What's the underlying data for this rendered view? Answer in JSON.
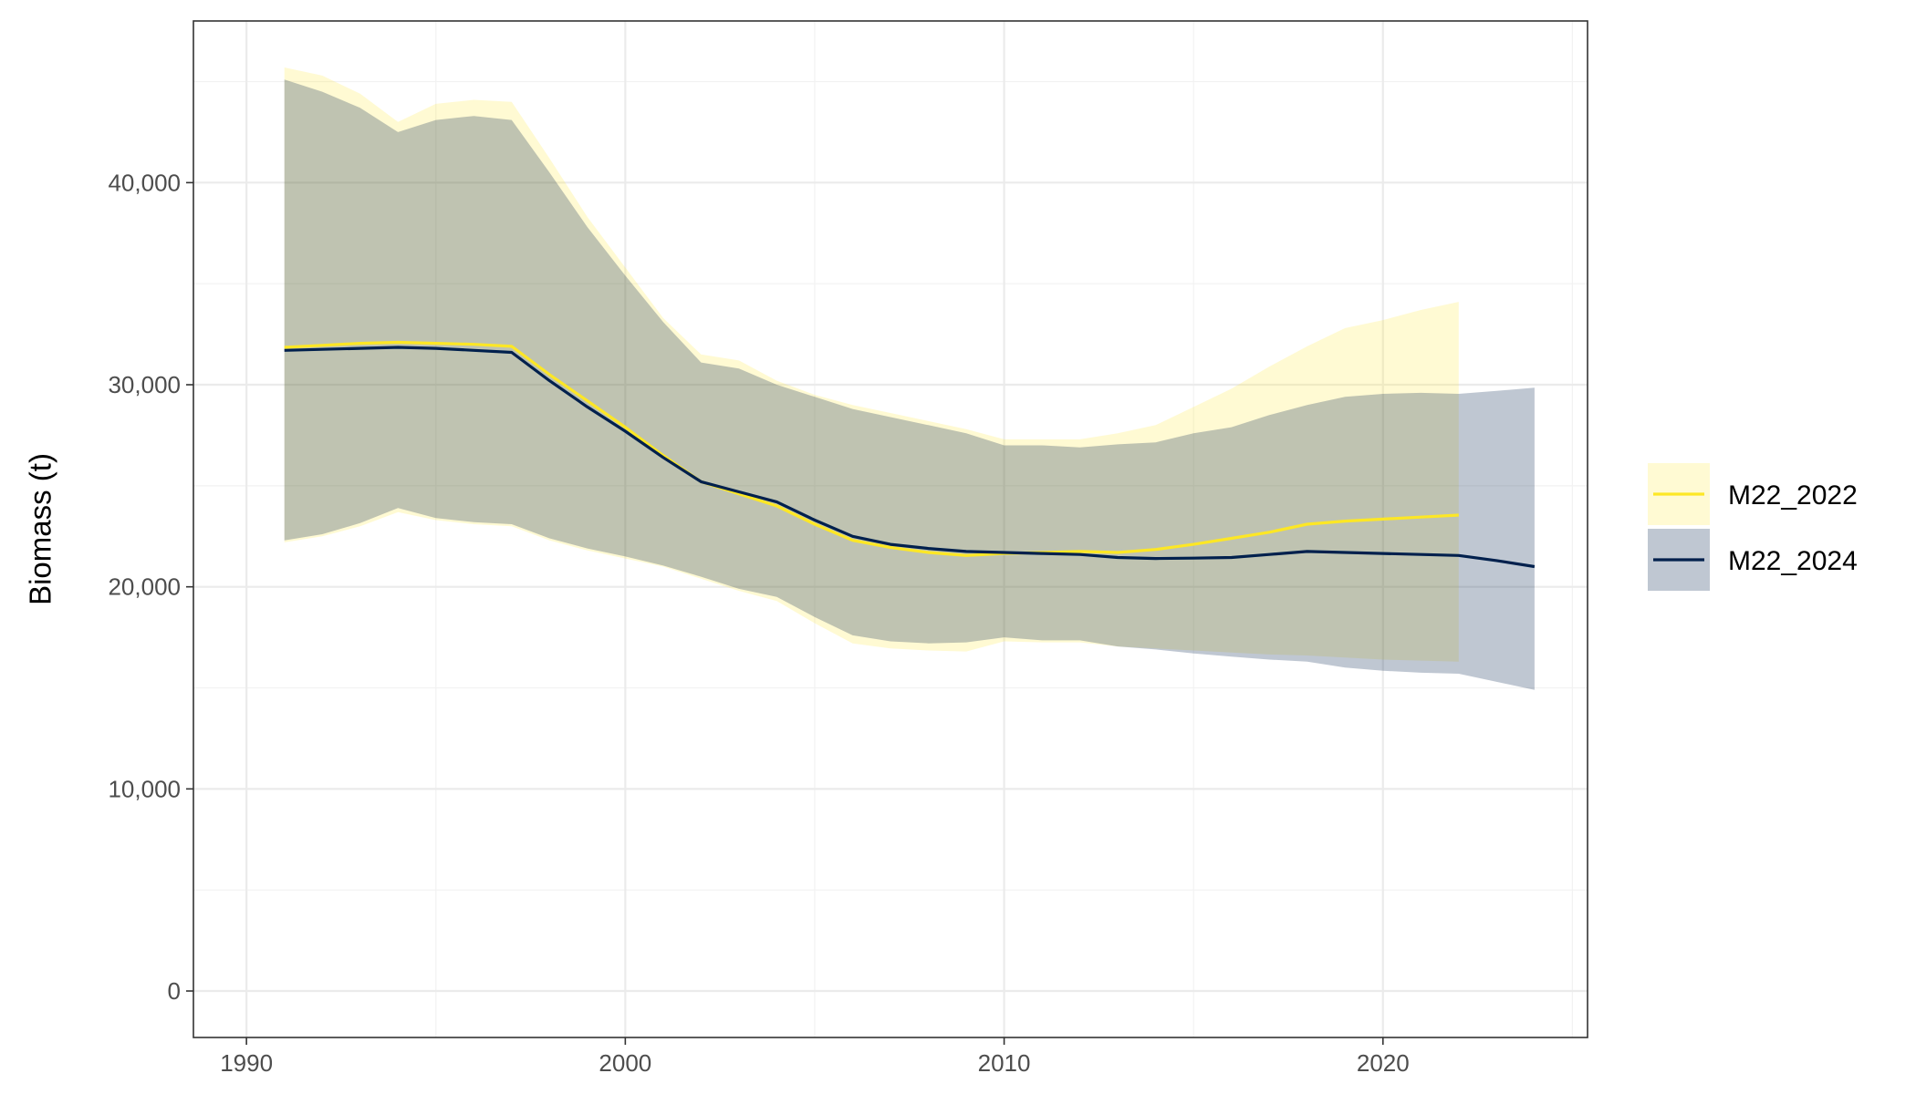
{
  "chart_data": {
    "type": "line",
    "title": "",
    "xlabel": "",
    "ylabel": "Biomass (t)",
    "xlim": [
      1990,
      2025
    ],
    "ylim": [
      0,
      46000
    ],
    "grid": true,
    "legend_position": "right",
    "x_ticks": [
      1990,
      2000,
      2010,
      2020
    ],
    "x_tick_labels": [
      "1990",
      "2000",
      "2010",
      "2020"
    ],
    "y_ticks": [
      0,
      10000,
      20000,
      30000,
      40000
    ],
    "y_tick_labels": [
      "0",
      "10,000",
      "20,000",
      "30,000",
      "40,000"
    ],
    "series": [
      {
        "name": "M22_2022",
        "line_color": "#fde725",
        "band_color": "#fde725",
        "band_opacity": 0.2,
        "x": [
          1991,
          1992,
          1993,
          1994,
          1995,
          1996,
          1997,
          1998,
          1999,
          2000,
          2001,
          2002,
          2003,
          2004,
          2005,
          2006,
          2007,
          2008,
          2009,
          2010,
          2011,
          2012,
          2013,
          2014,
          2015,
          2016,
          2017,
          2018,
          2019,
          2020,
          2021,
          2022
        ],
        "y": [
          31850,
          31950,
          32050,
          32100,
          32050,
          32000,
          31900,
          30500,
          29200,
          27900,
          26500,
          25200,
          24600,
          24000,
          23100,
          22300,
          21950,
          21700,
          21550,
          21650,
          21700,
          21750,
          21700,
          21850,
          22100,
          22400,
          22700,
          23100,
          23250,
          23350,
          23450,
          23550
        ],
        "lower": [
          22200,
          22500,
          23000,
          23700,
          23300,
          23100,
          23000,
          22300,
          21800,
          21400,
          21000,
          20400,
          19800,
          19300,
          18200,
          17200,
          16950,
          16850,
          16800,
          17300,
          17250,
          17250,
          17050,
          16950,
          16850,
          16750,
          16650,
          16600,
          16500,
          16400,
          16350,
          16300
        ],
        "upper": [
          45700,
          45300,
          44400,
          43000,
          43900,
          44100,
          44000,
          41200,
          38300,
          35800,
          33300,
          31500,
          31200,
          30200,
          29500,
          29000,
          28600,
          28200,
          27800,
          27300,
          27300,
          27300,
          27600,
          28000,
          28900,
          29800,
          30900,
          31900,
          32800,
          33200,
          33700,
          34100
        ]
      },
      {
        "name": "M22_2024",
        "line_color": "#00204d",
        "band_color": "#00204d",
        "band_opacity": 0.25,
        "x": [
          1991,
          1992,
          1993,
          1994,
          1995,
          1996,
          1997,
          1998,
          1999,
          2000,
          2001,
          2002,
          2003,
          2004,
          2005,
          2006,
          2007,
          2008,
          2009,
          2010,
          2011,
          2012,
          2013,
          2014,
          2015,
          2016,
          2017,
          2018,
          2019,
          2020,
          2021,
          2022,
          2023,
          2024
        ],
        "y": [
          31700,
          31750,
          31800,
          31850,
          31800,
          31700,
          31600,
          30200,
          28900,
          27700,
          26400,
          25200,
          24700,
          24200,
          23300,
          22500,
          22100,
          21900,
          21750,
          21700,
          21650,
          21600,
          21450,
          21400,
          21420,
          21450,
          21600,
          21750,
          21700,
          21650,
          21600,
          21550,
          21300,
          21000
        ],
        "lower": [
          22300,
          22600,
          23150,
          23900,
          23400,
          23200,
          23100,
          22400,
          21900,
          21500,
          21050,
          20500,
          19900,
          19500,
          18500,
          17600,
          17300,
          17200,
          17250,
          17500,
          17350,
          17350,
          17050,
          16900,
          16700,
          16550,
          16400,
          16300,
          16000,
          15850,
          15750,
          15700,
          15300,
          14900
        ],
        "upper": [
          45100,
          44500,
          43700,
          42500,
          43100,
          43300,
          43100,
          40500,
          37800,
          35400,
          33100,
          31100,
          30800,
          30000,
          29400,
          28800,
          28400,
          28000,
          27600,
          27000,
          27000,
          26900,
          27050,
          27150,
          27600,
          27900,
          28500,
          29000,
          29400,
          29550,
          29600,
          29550,
          29700,
          29850
        ]
      }
    ]
  }
}
